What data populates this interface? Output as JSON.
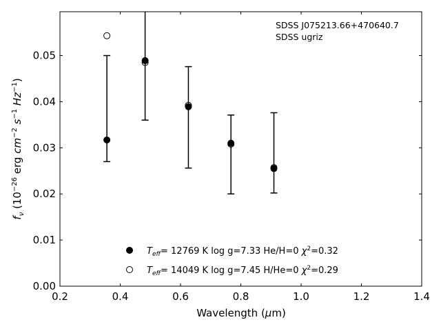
{
  "chart_data": {
    "type": "scatter",
    "annotation": [
      "SDSS J075213.66+470640.7",
      "SDSS ugriz"
    ],
    "xlabel": "Wavelength (μm)",
    "ylabel": "fν (10⁻²⁶ erg cm⁻² s⁻¹ Hz⁻¹)",
    "xlim": [
      0.2,
      1.4
    ],
    "ylim": [
      0.0,
      0.0595
    ],
    "xticks": [
      "0.2",
      "0.4",
      "0.6",
      "0.8",
      "1.0",
      "1.2",
      "1.4"
    ],
    "yticks": [
      "0.00",
      "0.01",
      "0.02",
      "0.03",
      "0.04",
      "0.05"
    ],
    "grid": false,
    "legend_position": "bottom-center",
    "observed": {
      "x": [
        0.3557,
        0.4825,
        0.6261,
        0.7672,
        0.9097
      ],
      "y": [
        0.0317,
        0.0487,
        0.0391,
        0.0309,
        0.0253
      ],
      "err_low": [
        0.027,
        0.036,
        0.0256,
        0.02,
        0.0202
      ],
      "err_high": [
        0.05,
        0.0605,
        0.0476,
        0.0371,
        0.0376
      ]
    },
    "series": [
      {
        "name": "T_eff= 12769 K  log g=7.33  He/H=0  χ²=0.32",
        "marker": "filled-circle",
        "x": [
          0.3557,
          0.4825,
          0.6261,
          0.7672,
          0.9097
        ],
        "y": [
          0.0317,
          0.0489,
          0.0389,
          0.031,
          0.0255
        ]
      },
      {
        "name": "T_eff= 14049 K  log g=7.45  H/He=0  χ²=0.29",
        "marker": "open-circle",
        "x": [
          0.3557,
          0.4825,
          0.6261,
          0.7672,
          0.9097
        ],
        "y": [
          0.0543,
          0.0485,
          0.0392,
          0.0308,
          0.0257
        ]
      }
    ],
    "legend": [
      {
        "teff": "12769",
        "unit": "K",
        "logg": "log g=7.33",
        "comp": "He/H=0",
        "chi2": "=0.32"
      },
      {
        "teff": "14049",
        "unit": "K",
        "logg": "log g=7.45",
        "comp": "H/He=0",
        "chi2": "=0.29"
      }
    ]
  }
}
